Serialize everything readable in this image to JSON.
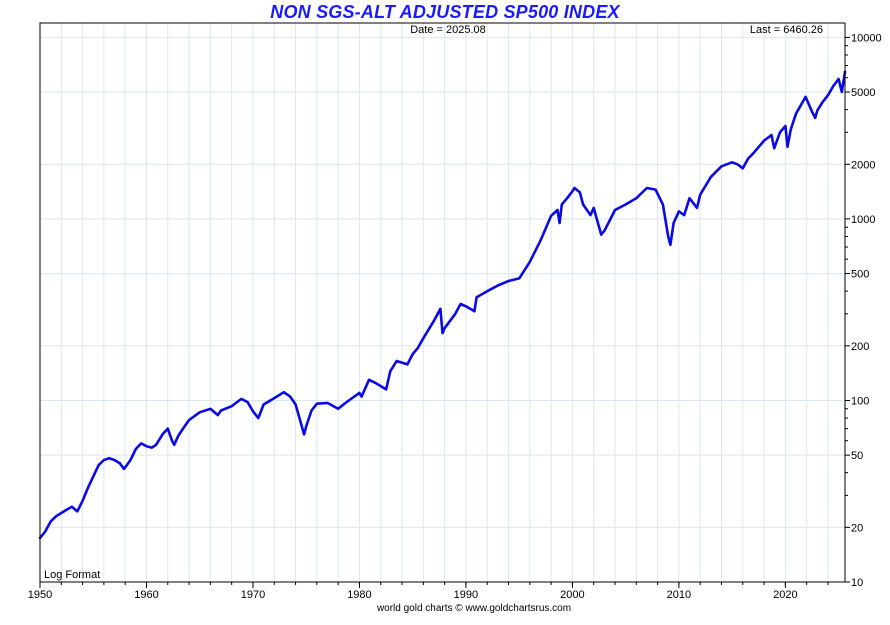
{
  "chart_data": {
    "type": "line",
    "title": "NON SGS-ALT ADJUSTED SP500 INDEX",
    "date_label": "Date = 2025.08",
    "last_label": "Last = 6460.26",
    "format_label": "Log Format",
    "footer": "world gold charts © www.goldchartsrus.com",
    "xlim": [
      1950,
      2025.6
    ],
    "ylim": [
      10,
      12000
    ],
    "y_scale": "log",
    "y_ticks": [
      10,
      20,
      50,
      100,
      200,
      500,
      1000,
      2000,
      5000,
      10000
    ],
    "y_tick_labels": [
      "10",
      "20",
      "50",
      "100",
      "200",
      "500",
      "1000",
      "2000",
      "5000",
      "10000"
    ],
    "x_ticks": [
      1950,
      1960,
      1970,
      1980,
      1990,
      2000,
      2010,
      2020
    ],
    "x_tick_labels": [
      "1950",
      "1960",
      "1970",
      "1980",
      "1990",
      "2000",
      "2010",
      "2020"
    ],
    "grid": true,
    "colors": {
      "line": "#0a0ae6",
      "title": "#1a1aff",
      "grid": "#dce8ee",
      "axis": "#000000"
    },
    "series": [
      {
        "name": "Non SGS-Alt Adjusted SP500",
        "x": [
          1950.0,
          1950.5,
          1951.0,
          1951.5,
          1952.0,
          1952.5,
          1953.0,
          1953.5,
          1954.0,
          1954.5,
          1955.0,
          1955.5,
          1956.0,
          1956.5,
          1957.0,
          1957.5,
          1957.9,
          1958.5,
          1959.0,
          1959.5,
          1960.0,
          1960.5,
          1960.9,
          1961.5,
          1962.0,
          1962.4,
          1962.6,
          1963.0,
          1963.5,
          1964.0,
          1965.0,
          1966.0,
          1966.7,
          1967.0,
          1968.0,
          1968.9,
          1969.5,
          1970.0,
          1970.5,
          1971.0,
          1972.0,
          1972.9,
          1973.5,
          1974.0,
          1974.5,
          1974.8,
          1975.0,
          1975.5,
          1976.0,
          1977.0,
          1978.0,
          1978.5,
          1979.0,
          1980.0,
          1980.2,
          1980.9,
          1981.5,
          1982.5,
          1982.9,
          1983.5,
          1984.5,
          1985.0,
          1985.5,
          1986.0,
          1987.0,
          1987.6,
          1987.8,
          1988.0,
          1989.0,
          1989.5,
          1990.0,
          1990.8,
          1991.0,
          1992.0,
          1993.0,
          1994.0,
          1995.0,
          1996.0,
          1997.0,
          1998.0,
          1998.6,
          1998.8,
          1999.0,
          1999.5,
          2000.0,
          2000.2,
          2000.7,
          2001.0,
          2001.7,
          2002.0,
          2002.7,
          2003.0,
          2003.5,
          2004.0,
          2005.0,
          2006.0,
          2007.0,
          2007.8,
          2008.5,
          2009.0,
          2009.2,
          2009.5,
          2010.0,
          2010.5,
          2011.0,
          2011.7,
          2012.0,
          2013.0,
          2014.0,
          2015.0,
          2015.5,
          2016.0,
          2016.5,
          2017.0,
          2018.0,
          2018.7,
          2018.95,
          2019.5,
          2020.0,
          2020.2,
          2020.5,
          2021.0,
          2021.9,
          2022.5,
          2022.8,
          2023.0,
          2023.5,
          2024.0,
          2024.5,
          2025.0,
          2025.3,
          2025.6
        ],
        "values": [
          17.5,
          19.0,
          21.5,
          23.0,
          24.0,
          25.0,
          26.0,
          24.5,
          28.0,
          33.0,
          38.0,
          44.0,
          47.0,
          48.0,
          47.0,
          45.0,
          42.0,
          47.0,
          54.0,
          58.0,
          56.0,
          55.0,
          57.0,
          65.0,
          70.0,
          60.0,
          57.0,
          64.0,
          71.0,
          78.0,
          86.0,
          90.0,
          83.0,
          88.0,
          93.0,
          102.0,
          98.0,
          87.0,
          80.0,
          95.0,
          103.0,
          111.0,
          105.0,
          95.0,
          75.0,
          65.0,
          72.0,
          88.0,
          96.0,
          97.0,
          90.0,
          95.0,
          100.0,
          110.0,
          105.0,
          130.0,
          125.0,
          115.0,
          145.0,
          165.0,
          158.0,
          180.0,
          195.0,
          220.0,
          275.0,
          320.0,
          235.0,
          250.0,
          300.0,
          340.0,
          330.0,
          310.0,
          370.0,
          400.0,
          430.0,
          455.0,
          470.0,
          580.0,
          760.0,
          1040.0,
          1120.0,
          950.0,
          1200.0,
          1300.0,
          1420.0,
          1480.0,
          1400.0,
          1200.0,
          1050.0,
          1150.0,
          820.0,
          860.0,
          980.0,
          1120.0,
          1200.0,
          1300.0,
          1480.0,
          1450.0,
          1200.0,
          800.0,
          720.0,
          950.0,
          1100.0,
          1050.0,
          1300.0,
          1150.0,
          1360.0,
          1700.0,
          1950.0,
          2050.0,
          2000.0,
          1900.0,
          2150.0,
          2300.0,
          2700.0,
          2900.0,
          2450.0,
          3000.0,
          3250.0,
          2500.0,
          3100.0,
          3800.0,
          4700.0,
          3900.0,
          3600.0,
          3950.0,
          4400.0,
          4800.0,
          5400.0,
          5900.0,
          5000.0,
          6460.26
        ]
      }
    ]
  }
}
